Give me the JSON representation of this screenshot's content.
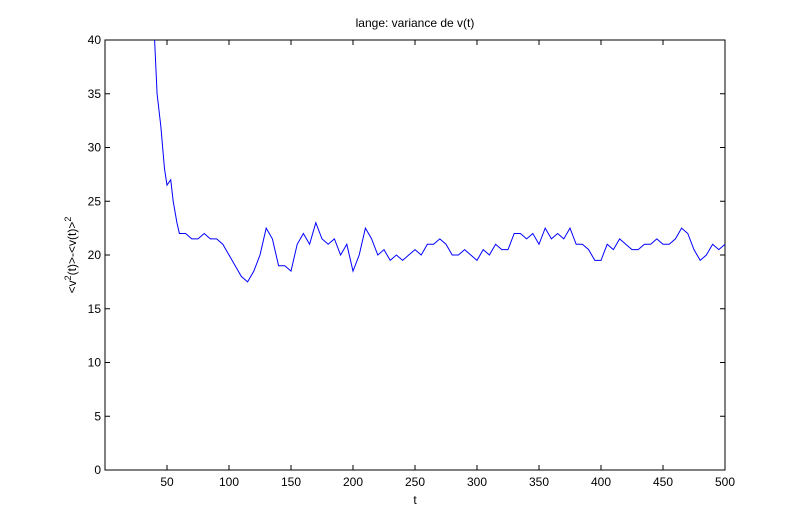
{
  "chart_data": {
    "type": "line",
    "title": "lange:    variance de v(t)",
    "xlabel": "t",
    "ylabel": [
      "<v",
      "2",
      "(t)>-<v(t)>",
      "2"
    ],
    "x": [
      40,
      42,
      45,
      48,
      50,
      53,
      55,
      58,
      60,
      65,
      70,
      75,
      80,
      85,
      90,
      95,
      100,
      105,
      110,
      115,
      120,
      125,
      130,
      135,
      140,
      145,
      150,
      155,
      160,
      165,
      170,
      175,
      180,
      185,
      190,
      195,
      200,
      205,
      210,
      215,
      220,
      225,
      230,
      235,
      240,
      245,
      250,
      255,
      260,
      265,
      270,
      275,
      280,
      285,
      290,
      295,
      300,
      305,
      310,
      315,
      320,
      325,
      330,
      335,
      340,
      345,
      350,
      355,
      360,
      365,
      370,
      375,
      380,
      385,
      390,
      395,
      400,
      405,
      410,
      415,
      420,
      425,
      430,
      435,
      440,
      445,
      450,
      455,
      460,
      465,
      470,
      475,
      480,
      485,
      490,
      495,
      500
    ],
    "series": [
      {
        "name": "variance",
        "color": "#0000ff",
        "values": [
          40,
          35,
          32,
          28,
          26.5,
          27,
          25,
          23,
          22,
          22,
          21.5,
          21.5,
          22,
          21.5,
          21.5,
          21,
          20,
          19,
          18,
          17.5,
          18.5,
          20,
          22.5,
          21.5,
          19,
          19,
          18.5,
          21,
          22,
          21,
          23,
          21.5,
          21,
          21.5,
          20,
          21,
          18.5,
          20,
          22.5,
          21.5,
          20,
          20.5,
          19.5,
          20,
          19.5,
          20,
          20.5,
          20,
          21,
          21,
          21.5,
          21,
          20,
          20,
          20.5,
          20,
          19.5,
          20.5,
          20,
          21,
          20.5,
          20.5,
          22,
          22,
          21.5,
          22,
          21,
          22.5,
          21.5,
          22,
          21.5,
          22.5,
          21,
          21,
          20.5,
          19.5,
          19.5,
          21,
          20.5,
          21.5,
          21,
          20.5,
          20.5,
          21,
          21,
          21.5,
          21,
          21,
          21.5,
          22.5,
          22,
          20.5,
          19.5,
          20,
          21,
          20.5,
          21
        ]
      }
    ],
    "xlim": [
      0,
      500
    ],
    "ylim": [
      0,
      40
    ],
    "xticks": [
      50,
      100,
      150,
      200,
      250,
      300,
      350,
      400,
      450,
      500
    ],
    "yticks": [
      0,
      5,
      10,
      15,
      20,
      25,
      30,
      35,
      40
    ],
    "grid": false
  }
}
